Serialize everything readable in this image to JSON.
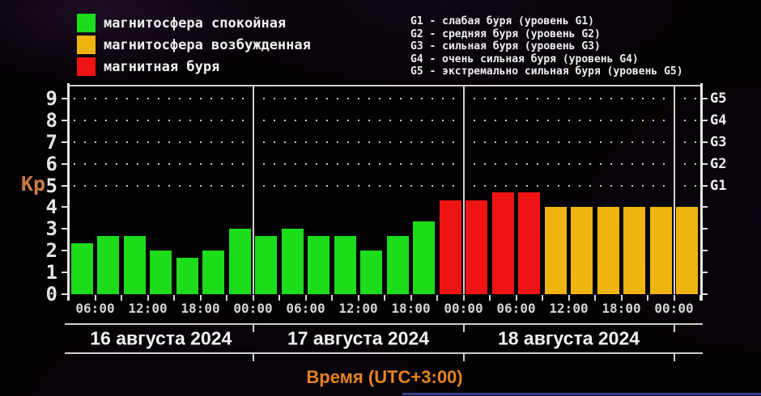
{
  "legend": {
    "items": [
      {
        "label": "магнитосфера спокойная",
        "color": "green"
      },
      {
        "label": "магнитосфера возбужденная",
        "color": "yellow"
      },
      {
        "label": "магнитная буря",
        "color": "red"
      }
    ]
  },
  "storm_levels": {
    "lines": [
      "G1 - слабая буря (уровень G1)",
      "G2 - средняя буря (уровень G2)",
      "G3 - сильная буря (уровень G3)",
      "G4 - очень сильная буря (уровень G4)",
      "G5 - экстремально сильная буря (уровень G5)"
    ]
  },
  "chart_data": {
    "type": "bar",
    "ylabel": "Kp",
    "xlabel": "Время (UTC+3:00)",
    "ylim": [
      0,
      9.6
    ],
    "yticks": [
      0,
      1,
      2,
      3,
      4,
      5,
      6,
      7,
      8,
      9
    ],
    "grid_levels": [
      5,
      6,
      7,
      8,
      9
    ],
    "right_axis": [
      {
        "kp": 5,
        "label": "G1"
      },
      {
        "kp": 6,
        "label": "G2"
      },
      {
        "kp": 7,
        "label": "G3"
      },
      {
        "kp": 8,
        "label": "G4"
      },
      {
        "kp": 9,
        "label": "G5"
      }
    ],
    "bar_interval_hours": 3,
    "colors": {
      "green": "#1cdc1c",
      "yellow": "#f0b411",
      "red": "#ee1414"
    },
    "bars": [
      {
        "kp": 2.33,
        "color": "green"
      },
      {
        "kp": 2.67,
        "color": "green"
      },
      {
        "kp": 2.67,
        "color": "green"
      },
      {
        "kp": 2.0,
        "color": "green"
      },
      {
        "kp": 1.67,
        "color": "green"
      },
      {
        "kp": 2.0,
        "color": "green"
      },
      {
        "kp": 3.0,
        "color": "green"
      },
      {
        "kp": 2.67,
        "color": "green"
      },
      {
        "kp": 3.0,
        "color": "green"
      },
      {
        "kp": 2.67,
        "color": "green"
      },
      {
        "kp": 2.67,
        "color": "green"
      },
      {
        "kp": 2.0,
        "color": "green"
      },
      {
        "kp": 2.67,
        "color": "green"
      },
      {
        "kp": 3.33,
        "color": "green"
      },
      {
        "kp": 4.33,
        "color": "red"
      },
      {
        "kp": 4.33,
        "color": "red"
      },
      {
        "kp": 4.67,
        "color": "red"
      },
      {
        "kp": 4.67,
        "color": "red"
      },
      {
        "kp": 4.0,
        "color": "yellow"
      },
      {
        "kp": 4.0,
        "color": "yellow"
      },
      {
        "kp": 4.0,
        "color": "yellow"
      },
      {
        "kp": 4.0,
        "color": "yellow"
      },
      {
        "kp": 4.0,
        "color": "yellow"
      },
      {
        "kp": 4.0,
        "color": "yellow"
      }
    ],
    "x_ticks": [
      {
        "b": 1,
        "label": "06:00"
      },
      {
        "b": 3,
        "label": "12:00"
      },
      {
        "b": 5,
        "label": "18:00"
      },
      {
        "b": 7,
        "label": "00:00"
      },
      {
        "b": 9,
        "label": "06:00"
      },
      {
        "b": 11,
        "label": "12:00"
      },
      {
        "b": 13,
        "label": "18:00"
      },
      {
        "b": 15,
        "label": "00:00"
      },
      {
        "b": 17,
        "label": "06:00"
      },
      {
        "b": 19,
        "label": "12:00"
      },
      {
        "b": 21,
        "label": "18:00"
      },
      {
        "b": 23,
        "label": "00:00"
      }
    ],
    "day_separators": [
      7,
      15,
      23
    ],
    "days": [
      {
        "label": "16 августа 2024",
        "start": 0,
        "end": 7
      },
      {
        "label": "17 августа 2024",
        "start": 7,
        "end": 15
      },
      {
        "label": "18 августа 2024",
        "start": 15,
        "end": 23
      }
    ]
  }
}
